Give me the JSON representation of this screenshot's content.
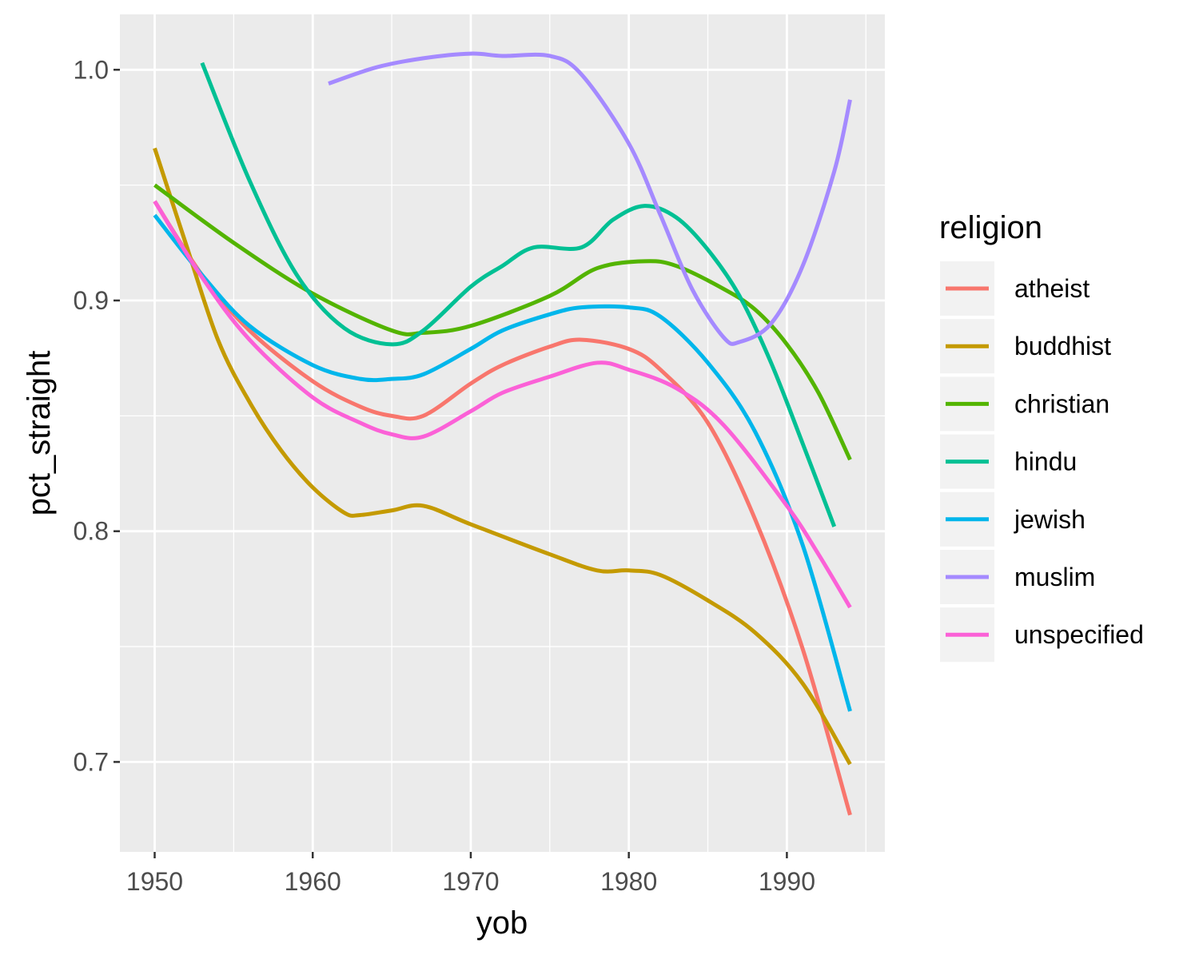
{
  "chart_data": {
    "type": "line",
    "xlabel": "yob",
    "ylabel": "pct_straight",
    "xlim": [
      1947.8,
      1996.2
    ],
    "ylim": [
      0.661,
      1.024
    ],
    "x_ticks": [
      1950,
      1960,
      1970,
      1980,
      1990
    ],
    "x_tick_labels": [
      "1950",
      "1960",
      "1970",
      "1980",
      "1990"
    ],
    "x_minor_ticks": [
      1955,
      1965,
      1975,
      1985,
      1995
    ],
    "y_ticks": [
      0.7,
      0.8,
      0.9,
      1.0
    ],
    "y_tick_labels": [
      "0.7",
      "0.8",
      "0.9",
      "1.0"
    ],
    "y_minor_ticks": [
      0.75,
      0.85,
      0.95
    ],
    "grid": true,
    "panel_background": "#ebebeb",
    "grid_color": "#ffffff",
    "legend": {
      "title": "religion",
      "position": "right"
    },
    "series": [
      {
        "name": "atheist",
        "color": "#F8766D",
        "x": [
          1950,
          1953,
          1956,
          1960,
          1963,
          1965,
          1967,
          1970,
          1972,
          1975,
          1977,
          1980,
          1982,
          1985,
          1988,
          1991,
          1994
        ],
        "y": [
          0.943,
          0.911,
          0.887,
          0.865,
          0.854,
          0.85,
          0.85,
          0.864,
          0.872,
          0.88,
          0.883,
          0.879,
          0.87,
          0.847,
          0.805,
          0.749,
          0.677
        ]
      },
      {
        "name": "buddhist",
        "color": "#C49A00",
        "x": [
          1950,
          1952,
          1954,
          1956,
          1958,
          1960,
          1962,
          1963,
          1965,
          1967,
          1970,
          1975,
          1978,
          1980,
          1982,
          1985,
          1988,
          1991,
          1994
        ],
        "y": [
          0.966,
          0.924,
          0.883,
          0.856,
          0.835,
          0.819,
          0.808,
          0.807,
          0.809,
          0.811,
          0.803,
          0.79,
          0.783,
          0.783,
          0.781,
          0.77,
          0.756,
          0.734,
          0.699
        ]
      },
      {
        "name": "christian",
        "color": "#53B400",
        "x": [
          1950,
          1955,
          1960,
          1965,
          1967,
          1970,
          1975,
          1978,
          1981,
          1983,
          1986,
          1988,
          1990,
          1992,
          1994
        ],
        "y": [
          0.95,
          0.925,
          0.903,
          0.887,
          0.886,
          0.889,
          0.902,
          0.914,
          0.917,
          0.915,
          0.905,
          0.896,
          0.881,
          0.86,
          0.831
        ]
      },
      {
        "name": "hindu",
        "color": "#00C094",
        "x": [
          1953,
          1956,
          1959,
          1962,
          1965,
          1967,
          1970,
          1972,
          1974,
          1977,
          1979,
          1981,
          1983,
          1985,
          1987,
          1989,
          1991,
          1993
        ],
        "y": [
          1.003,
          0.952,
          0.911,
          0.888,
          0.881,
          0.887,
          0.906,
          0.915,
          0.923,
          0.923,
          0.935,
          0.941,
          0.936,
          0.922,
          0.902,
          0.873,
          0.838,
          0.802
        ]
      },
      {
        "name": "jewish",
        "color": "#00B6EB",
        "x": [
          1950,
          1953,
          1956,
          1960,
          1963,
          1965,
          1967,
          1970,
          1972,
          1975,
          1977,
          1980,
          1982,
          1985,
          1988,
          1991,
          1994
        ],
        "y": [
          0.937,
          0.911,
          0.889,
          0.872,
          0.866,
          0.866,
          0.868,
          0.879,
          0.887,
          0.894,
          0.897,
          0.897,
          0.893,
          0.873,
          0.843,
          0.794,
          0.722
        ]
      },
      {
        "name": "muslim",
        "color": "#A58AFF",
        "x": [
          1961,
          1964,
          1967,
          1970,
          1972,
          1975,
          1977,
          1980,
          1982,
          1984,
          1986,
          1987,
          1989,
          1991,
          1993,
          1994
        ],
        "y": [
          0.994,
          1.001,
          1.005,
          1.007,
          1.006,
          1.006,
          0.998,
          0.968,
          0.937,
          0.905,
          0.884,
          0.882,
          0.89,
          0.915,
          0.956,
          0.987
        ]
      },
      {
        "name": "unspecified",
        "color": "#FB61D7",
        "x": [
          1950,
          1953,
          1956,
          1960,
          1963,
          1965,
          1967,
          1970,
          1972,
          1975,
          1978,
          1980,
          1983,
          1986,
          1990,
          1992,
          1994
        ],
        "y": [
          0.943,
          0.91,
          0.883,
          0.858,
          0.847,
          0.842,
          0.841,
          0.852,
          0.86,
          0.867,
          0.873,
          0.87,
          0.862,
          0.846,
          0.811,
          0.79,
          0.767
        ]
      }
    ]
  }
}
